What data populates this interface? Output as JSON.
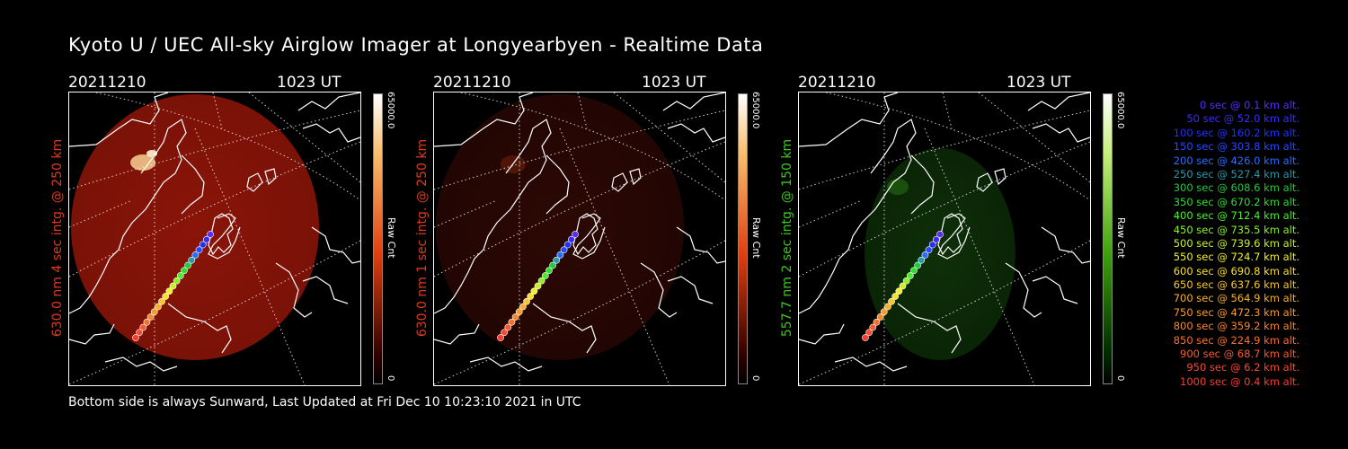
{
  "title": "Kyoto U / UEC All-sky Airglow Imager at Longyearbyen - Realtime Data",
  "footer": "Bottom side is always Sunward, Last Updated at Fri Dec 10 10:23:10 2021 in UTC",
  "panels": [
    {
      "date": "20211210",
      "time": "1023 UT",
      "label": "630.0 nm  4 sec intg. @ 250 km",
      "label_color": "#e03a1a",
      "cbar_max": "65000.0",
      "cbar_unit": "Raw Cnt",
      "cbar_min": "0",
      "glow": "strong-red"
    },
    {
      "date": "20211210",
      "time": "1023 UT",
      "label": "630.0 nm  1 sec intg. @ 250 km",
      "label_color": "#e03a1a",
      "cbar_max": "65000.0",
      "cbar_unit": "Raw Cnt",
      "cbar_min": "0",
      "glow": "faint-red"
    },
    {
      "date": "20211210",
      "time": "1023 UT",
      "label": "557.7 nm  2 sec intg. @ 150 km",
      "label_color": "#3cc81e",
      "cbar_max": "65000.0",
      "cbar_unit": "Raw Cnt",
      "cbar_min": "0",
      "glow": "faint-green"
    }
  ],
  "legend": [
    {
      "text": "0 sec @    0.1 km alt.",
      "color": "#5a2cff"
    },
    {
      "text": "50 sec @   52.0 km alt.",
      "color": "#3a2cff"
    },
    {
      "text": "100 sec @  160.2 km alt.",
      "color": "#2030ff"
    },
    {
      "text": "150 sec @  303.8 km alt.",
      "color": "#2848ff"
    },
    {
      "text": "200 sec @  426.0 km alt.",
      "color": "#2a6cff"
    },
    {
      "text": "250 sec @  527.4 km alt.",
      "color": "#2a9aa8"
    },
    {
      "text": "300 sec @  608.6 km alt.",
      "color": "#22c840"
    },
    {
      "text": "350 sec @  670.2 km alt.",
      "color": "#30dc30"
    },
    {
      "text": "400 sec @  712.4 km alt.",
      "color": "#48ee2a"
    },
    {
      "text": "450 sec @  735.5 km alt.",
      "color": "#8cf02a"
    },
    {
      "text": "500 sec @  739.6 km alt.",
      "color": "#c8f02a"
    },
    {
      "text": "550 sec @  724.7 km alt.",
      "color": "#f0f02a"
    },
    {
      "text": "600 sec @  690.8 km alt.",
      "color": "#f8e02a"
    },
    {
      "text": "650 sec @  637.6 km alt.",
      "color": "#f8c82a"
    },
    {
      "text": "700 sec @  564.9 km alt.",
      "color": "#f8b02a"
    },
    {
      "text": "750 sec @  472.3 km alt.",
      "color": "#f89a2a"
    },
    {
      "text": "800 sec @  359.2 km alt.",
      "color": "#f8862a"
    },
    {
      "text": "850 sec @  224.9 km alt.",
      "color": "#f87030"
    },
    {
      "text": "900 sec @   68.7 km alt.",
      "color": "#f85a30"
    },
    {
      "text": "950 sec @    6.2 km alt.",
      "color": "#f84a30"
    },
    {
      "text": "1000 sec @    0.4 km alt.",
      "color": "#f83c30"
    }
  ]
}
